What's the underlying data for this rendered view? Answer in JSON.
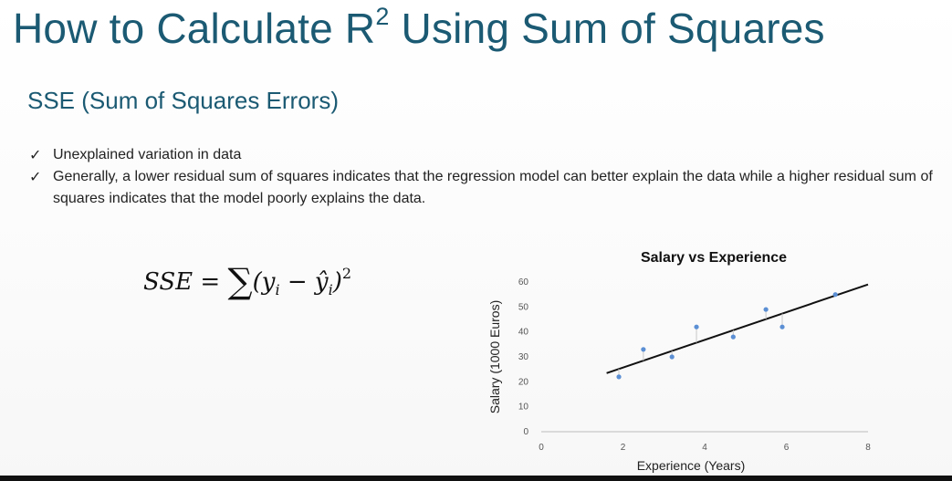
{
  "slide": {
    "title_main": "How to Calculate R",
    "title_sup": "2",
    "title_rest": " Using Sum of Squares",
    "subtitle": "SSE (Sum of Squares Errors)",
    "bullets": [
      {
        "check": "✓",
        "text": "Unexplained variation in data"
      },
      {
        "check": "✓",
        "text": "Generally, a lower residual sum of squares indicates that the regression model can better explain the data while a higher residual sum of squares indicates that the model poorly explains the data."
      }
    ],
    "formula": {
      "lhs": "SSE = ",
      "sigma": "∑",
      "open": "(y",
      "sub1": "i",
      "minus": " − ŷ",
      "sub2": "i",
      "close": ")",
      "power": "2"
    }
  },
  "chart_data": {
    "type": "scatter",
    "title": "Salary vs Experience",
    "xlabel": "Experience (Years)",
    "ylabel": "Salary (1000 Euros)",
    "xlim": [
      0,
      8
    ],
    "ylim": [
      0,
      60
    ],
    "xticks": [
      0,
      2,
      4,
      6,
      8
    ],
    "yticks": [
      0,
      10,
      20,
      30,
      40,
      50,
      60
    ],
    "grid": false,
    "legend": "none",
    "point_color": "#5b8fd4",
    "line_color": "#111111",
    "points": [
      {
        "x": 1.9,
        "y": 22
      },
      {
        "x": 2.5,
        "y": 33
      },
      {
        "x": 3.2,
        "y": 30
      },
      {
        "x": 3.8,
        "y": 42
      },
      {
        "x": 4.7,
        "y": 38
      },
      {
        "x": 5.5,
        "y": 49
      },
      {
        "x": 5.9,
        "y": 42
      },
      {
        "x": 7.2,
        "y": 55
      }
    ],
    "trendline": {
      "x": [
        1.6,
        8.0
      ],
      "y": [
        23.5,
        59
      ]
    }
  }
}
